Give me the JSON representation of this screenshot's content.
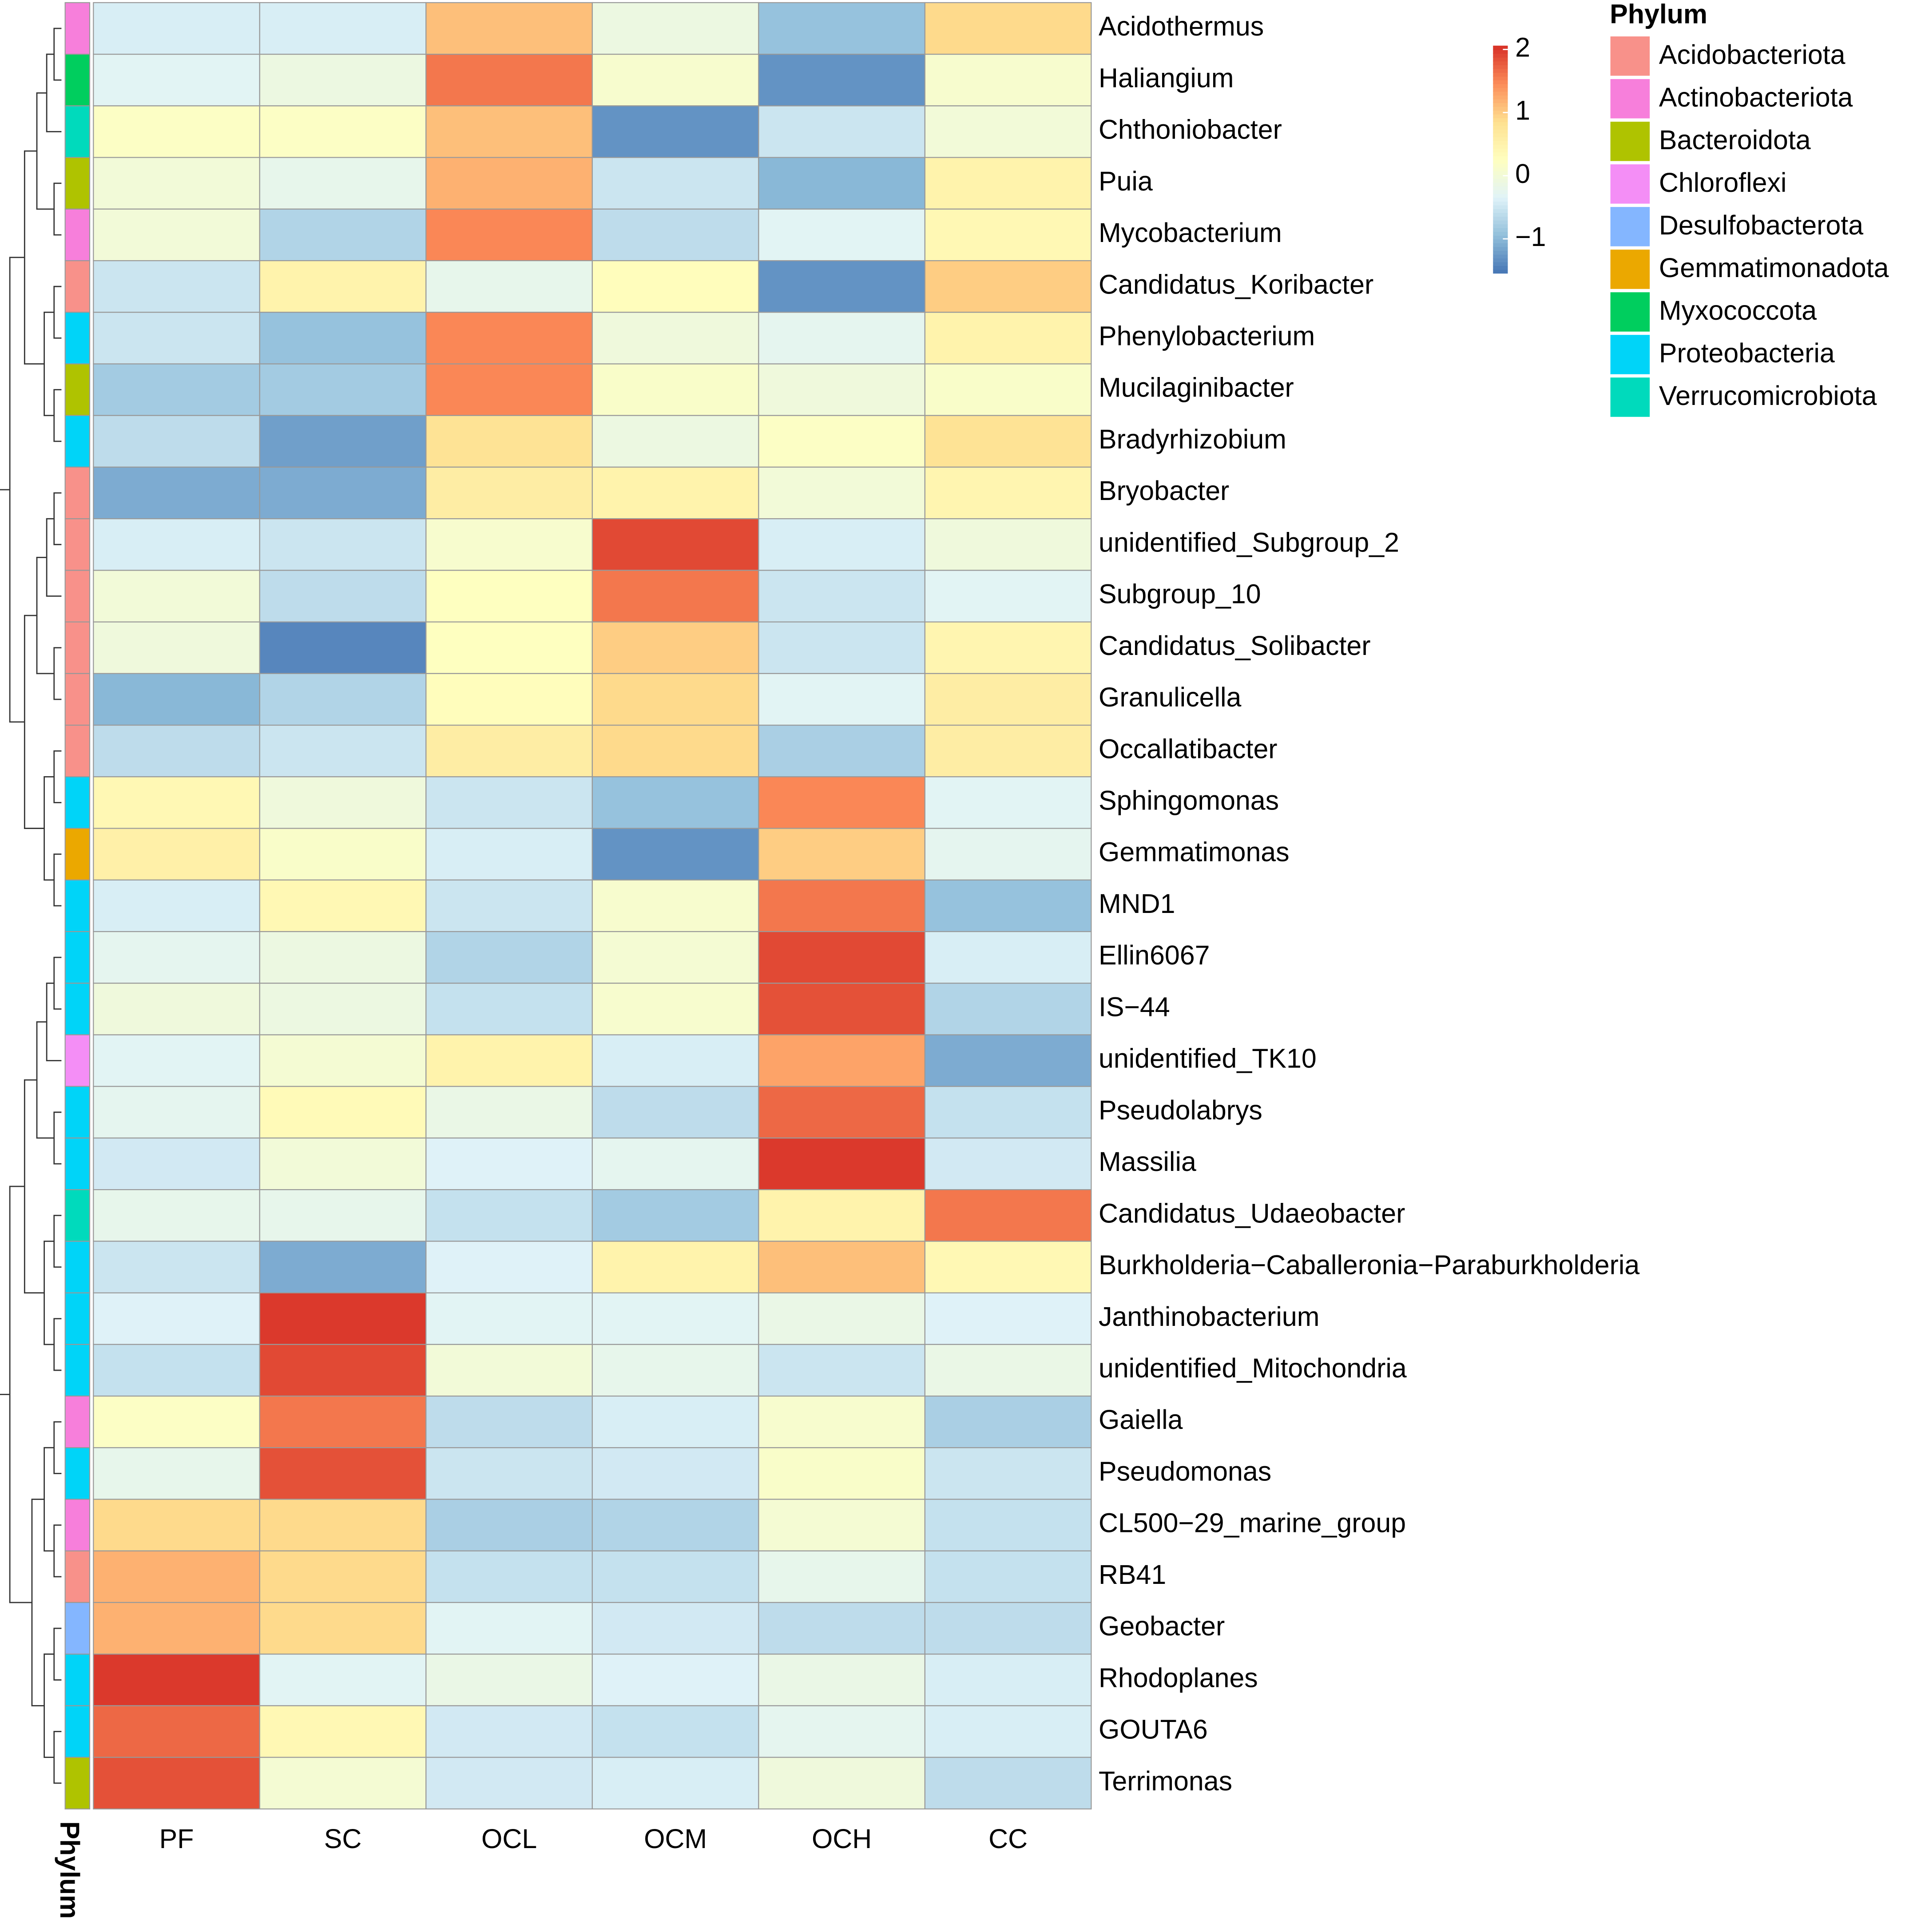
{
  "chart_data": {
    "type": "heatmap",
    "columns": [
      "PF",
      "SC",
      "OCL",
      "OCM",
      "OCH",
      "CC"
    ],
    "rows": [
      "Acidothermus",
      "Haliangium",
      "Chthoniobacter",
      "Puia",
      "Mycobacterium",
      "Candidatus_Koribacter",
      "Phenylobacterium",
      "Mucilaginibacter",
      "Bradyrhizobium",
      "Bryobacter",
      "unidentified_Subgroup_2",
      "Subgroup_10",
      "Candidatus_Solibacter",
      "Granulicella",
      "Occallatibacter",
      "Sphingomonas",
      "Gemmatimonas",
      "MND1",
      "Ellin6067",
      "IS−44",
      "unidentified_TK10",
      "Pseudolabrys",
      "Massilia",
      "Candidatus_Udaeobacter",
      "Burkholderia−Caballeronia−Paraburkholderia",
      "Janthinobacterium",
      "unidentified_Mitochondria",
      "Gaiella",
      "Pseudomonas",
      "CL500−29_marine_group",
      "RB41",
      "Geobacter",
      "Rhodoplanes",
      "GOUTA6",
      "Terrimonas"
    ],
    "values": [
      [
        -0.4,
        -0.4,
        1.1,
        -0.1,
        -0.9,
        0.9
      ],
      [
        -0.3,
        -0.1,
        1.6,
        0.1,
        -1.3,
        0.1
      ],
      [
        0.2,
        0.2,
        1.1,
        -1.3,
        -0.5,
        0.0
      ],
      [
        0.0,
        -0.2,
        1.2,
        -0.5,
        -1.0,
        0.5
      ],
      [
        0.0,
        -0.7,
        1.5,
        -0.6,
        -0.3,
        0.4
      ],
      [
        -0.5,
        0.5,
        -0.2,
        0.3,
        -1.3,
        1.0
      ],
      [
        -0.5,
        -0.9,
        1.5,
        -0.05,
        -0.25,
        0.5
      ],
      [
        -0.8,
        -0.8,
        1.5,
        0.15,
        -0.05,
        0.15
      ],
      [
        -0.6,
        -1.2,
        0.8,
        -0.1,
        0.2,
        0.8
      ],
      [
        -1.1,
        -1.1,
        0.6,
        0.5,
        0.0,
        0.45
      ],
      [
        -0.4,
        -0.5,
        0.1,
        1.9,
        -0.4,
        -0.05
      ],
      [
        0.0,
        -0.6,
        0.25,
        1.6,
        -0.5,
        -0.3
      ],
      [
        -0.05,
        -1.4,
        0.25,
        1.0,
        -0.5,
        0.45
      ],
      [
        -1.0,
        -0.7,
        0.3,
        0.9,
        -0.3,
        0.6
      ],
      [
        -0.6,
        -0.5,
        0.6,
        0.9,
        -0.75,
        0.6
      ],
      [
        0.4,
        -0.05,
        -0.5,
        -0.9,
        1.5,
        -0.3
      ],
      [
        0.55,
        0.15,
        -0.4,
        -1.3,
        1.0,
        -0.25
      ],
      [
        -0.4,
        0.4,
        -0.5,
        0.1,
        1.6,
        -0.9
      ],
      [
        -0.25,
        -0.1,
        -0.7,
        0.05,
        1.9,
        -0.4
      ],
      [
        -0.05,
        -0.1,
        -0.55,
        0.1,
        1.85,
        -0.7
      ],
      [
        -0.3,
        0.05,
        0.5,
        -0.4,
        1.3,
        -1.1
      ],
      [
        -0.25,
        0.35,
        -0.15,
        -0.6,
        1.7,
        -0.55
      ],
      [
        -0.45,
        0.0,
        -0.35,
        -0.25,
        2.0,
        -0.45
      ],
      [
        -0.2,
        -0.2,
        -0.55,
        -0.8,
        0.5,
        1.6
      ],
      [
        -0.5,
        -1.1,
        -0.35,
        0.5,
        1.1,
        0.4
      ],
      [
        -0.35,
        2.0,
        -0.3,
        -0.3,
        -0.15,
        -0.35
      ],
      [
        -0.55,
        1.9,
        0.0,
        -0.2,
        -0.5,
        -0.15
      ],
      [
        0.2,
        1.6,
        -0.6,
        -0.4,
        0.1,
        -0.75
      ],
      [
        -0.2,
        1.85,
        -0.5,
        -0.45,
        0.15,
        -0.5
      ],
      [
        0.9,
        0.9,
        -0.75,
        -0.7,
        0.05,
        -0.55
      ],
      [
        1.2,
        0.9,
        -0.55,
        -0.55,
        -0.2,
        -0.55
      ],
      [
        1.2,
        0.9,
        -0.3,
        -0.45,
        -0.6,
        -0.6
      ],
      [
        2.0,
        -0.3,
        -0.15,
        -0.35,
        -0.15,
        -0.4
      ],
      [
        1.7,
        0.4,
        -0.45,
        -0.55,
        -0.25,
        -0.4
      ],
      [
        1.85,
        0.05,
        -0.45,
        -0.4,
        -0.05,
        -0.6
      ]
    ],
    "palette": [
      "#4575B4",
      "#91BFDB",
      "#E0F3F8",
      "#FFFFBF",
      "#FEE090",
      "#FC8D59",
      "#D73027"
    ],
    "colorbar": {
      "lim": [
        -1.54,
        2.06
      ],
      "ticks": [
        {
          "value": -1,
          "label": "−1"
        },
        0,
        1,
        2
      ]
    },
    "annotation": {
      "title": "Phylum",
      "categories": [
        "Acidobacteriota",
        "Actinobacteriota",
        "Bacteroidota",
        "Chloroflexi",
        "Desulfobacterota",
        "Gemmatimonadota",
        "Myxococcota",
        "Proteobacteria",
        "Verrucomicrobiota"
      ],
      "colors": [
        "#F8918A",
        "#F77FDB",
        "#AFC300",
        "#F48EF6",
        "#84B6FF",
        "#EBA800",
        "#00CE5E",
        "#00D4F8",
        "#00DABC"
      ],
      "values": [
        "Actinobacteriota",
        "Myxococcota",
        "Verrucomicrobiota",
        "Bacteroidota",
        "Actinobacteriota",
        "Acidobacteriota",
        "Proteobacteria",
        "Bacteroidota",
        "Proteobacteria",
        "Acidobacteriota",
        "Acidobacteriota",
        "Acidobacteriota",
        "Acidobacteriota",
        "Acidobacteriota",
        "Acidobacteriota",
        "Proteobacteria",
        "Gemmatimonadota",
        "Proteobacteria",
        "Proteobacteria",
        "Proteobacteria",
        "Chloroflexi",
        "Proteobacteria",
        "Proteobacteria",
        "Verrucomicrobiota",
        "Proteobacteria",
        "Proteobacteria",
        "Proteobacteria",
        "Actinobacteriota",
        "Proteobacteria",
        "Actinobacteriota",
        "Acidobacteriota",
        "Desulfobacterota",
        "Proteobacteria",
        "Proteobacteria",
        "Bacteroidota"
      ]
    }
  }
}
